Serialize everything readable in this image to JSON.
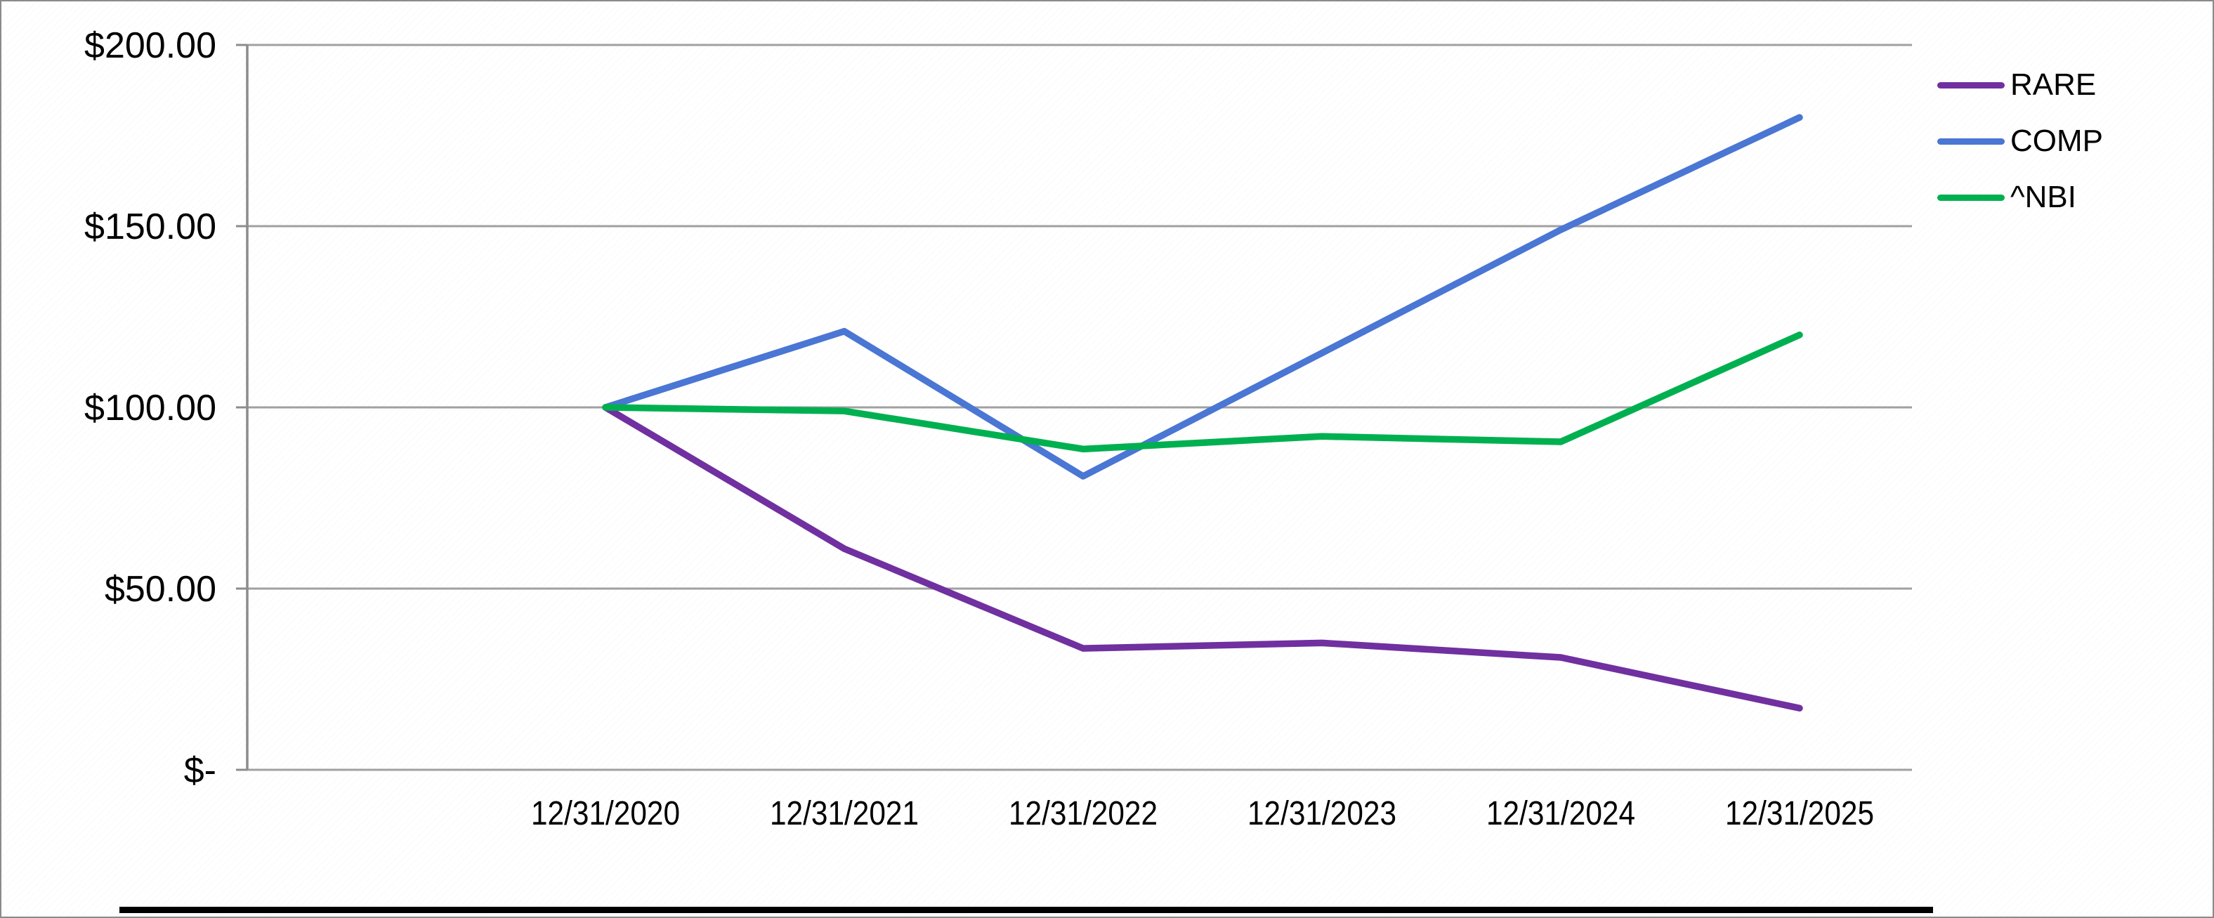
{
  "chart_data": {
    "type": "line",
    "title": "",
    "xlabel": "",
    "ylabel": "",
    "categories": [
      "12/31/2020",
      "12/31/2021",
      "12/31/2022",
      "12/31/2023",
      "12/31/2024",
      "12/31/2025"
    ],
    "series": [
      {
        "name": "RARE",
        "color": "#7030A0",
        "values": [
          100,
          61,
          33.5,
          35,
          31,
          17
        ]
      },
      {
        "name": "COMP",
        "color": "#4A76D4",
        "values": [
          100,
          121,
          81,
          115,
          149,
          180
        ]
      },
      {
        "name": "^NBI",
        "color": "#00B050",
        "values": [
          100,
          99,
          88.5,
          92,
          90.5,
          120
        ]
      }
    ],
    "ylim": [
      0,
      200
    ],
    "y_ticks": [
      {
        "value": 200,
        "label": "$200.00"
      },
      {
        "value": 150,
        "label": "$150.00"
      },
      {
        "value": 100,
        "label": "$100.00"
      },
      {
        "value": 50,
        "label": "$50.00"
      },
      {
        "value": 0,
        "label": "$-"
      }
    ],
    "grid": "horizontal-major",
    "legend_position": "right",
    "legend_entries": [
      "RARE",
      "COMP",
      "^NBI"
    ],
    "colors": {
      "gridline": "#A0A0A0",
      "axis": "#8C8C8C",
      "text": "#000000",
      "bottom_rule": "#000000"
    }
  }
}
